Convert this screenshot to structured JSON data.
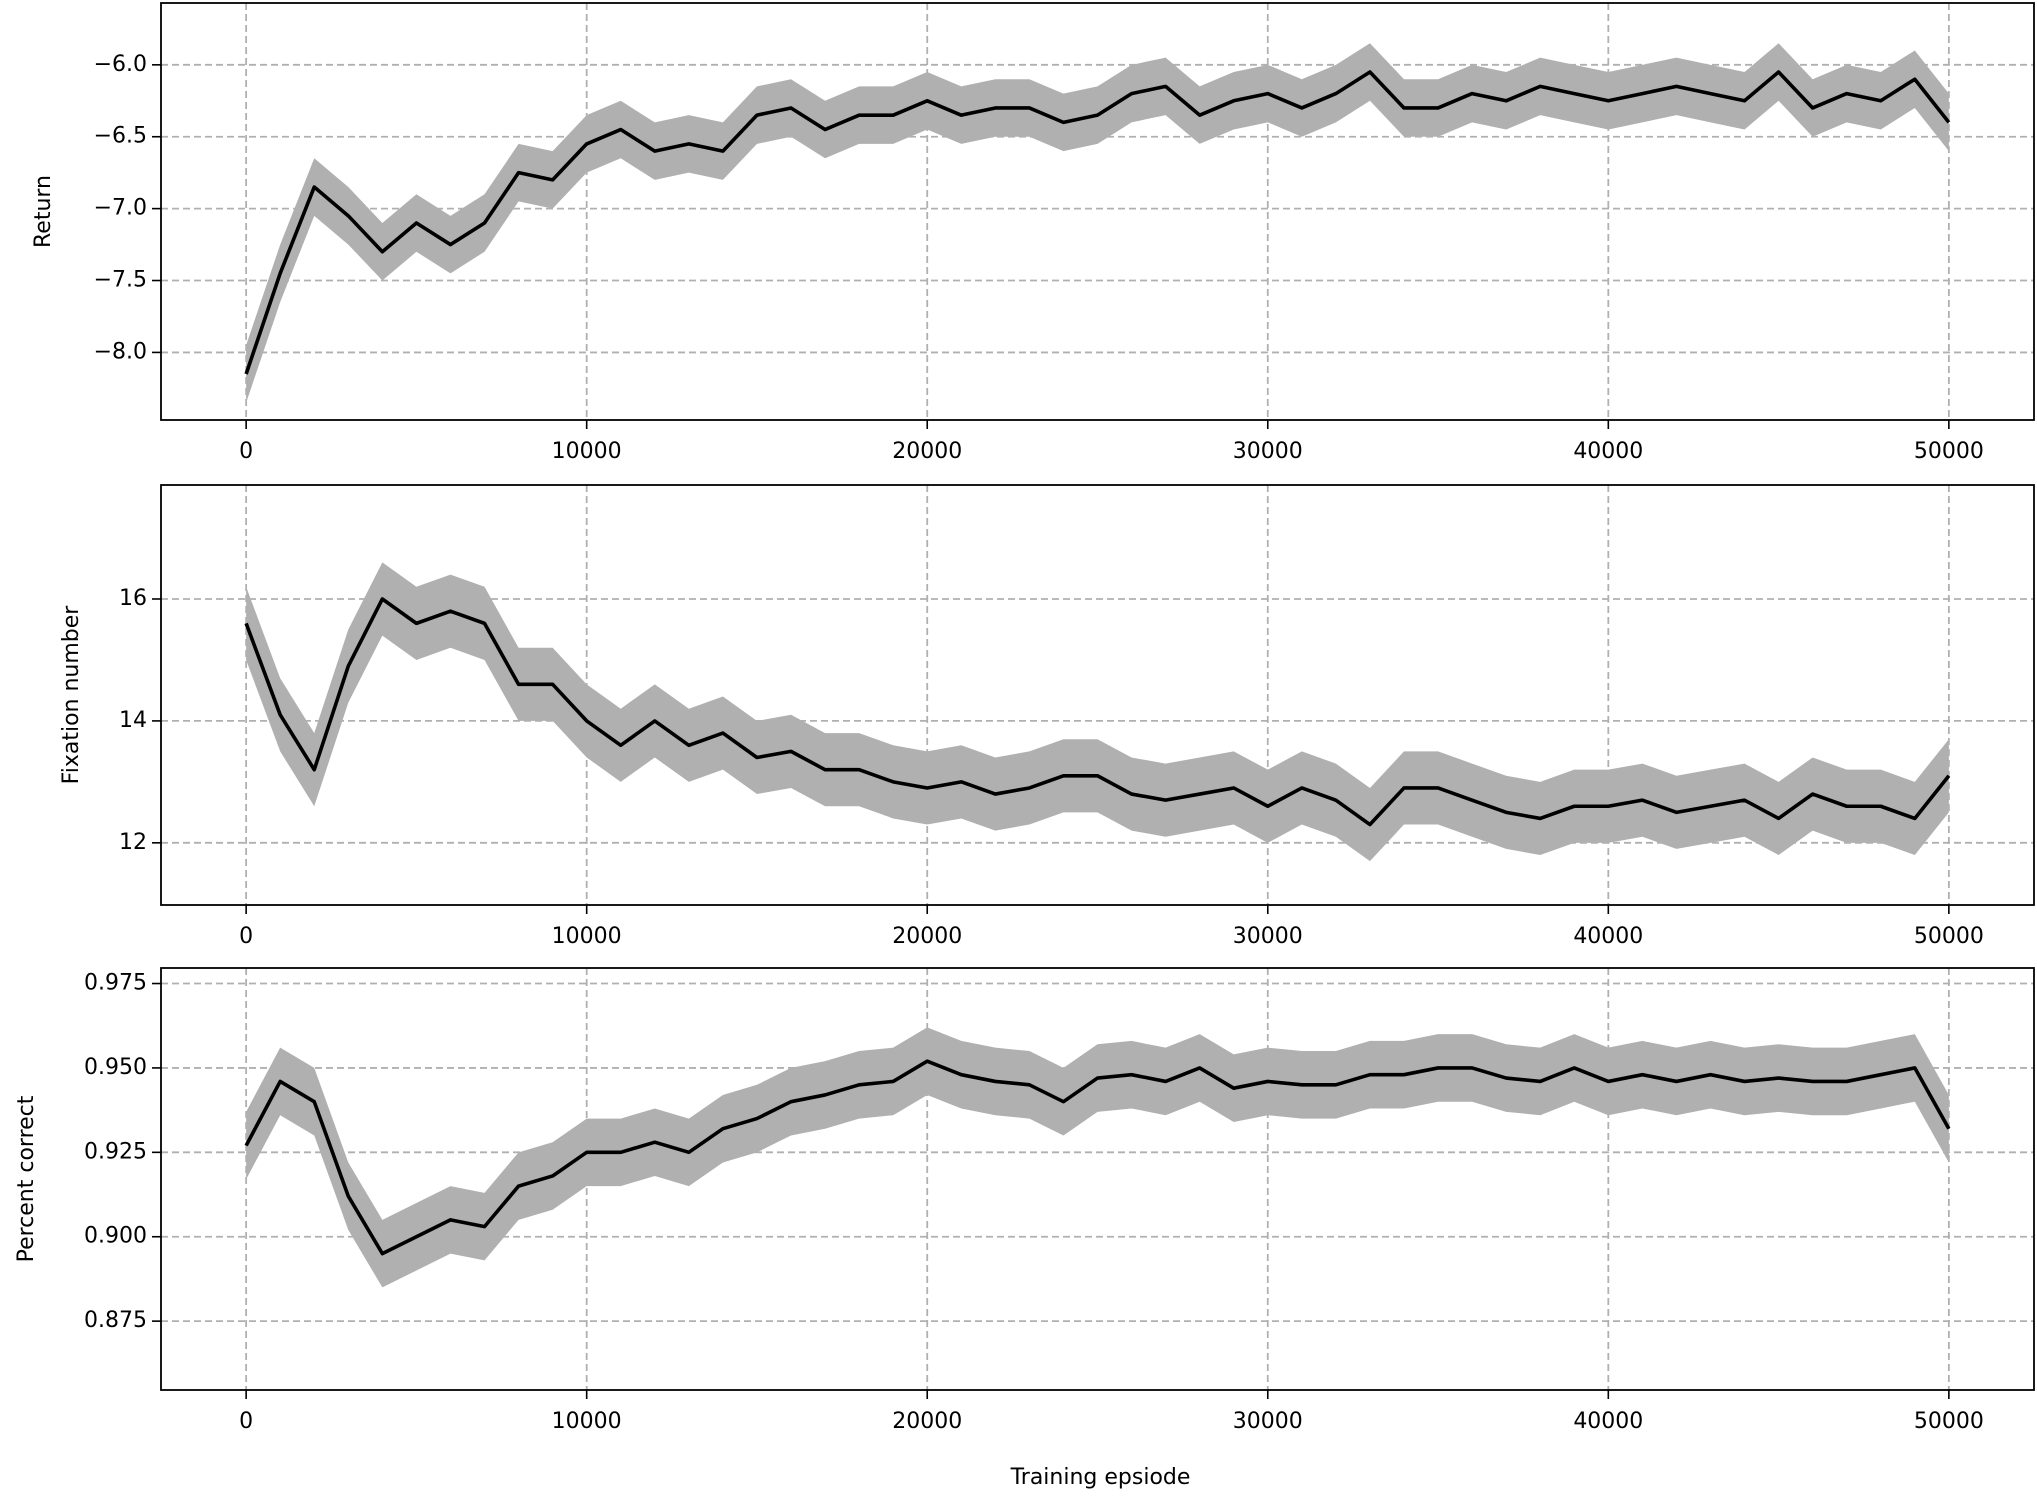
{
  "chart_data": [
    {
      "type": "line",
      "ylabel": "Return",
      "x": [
        0,
        1000,
        2000,
        3000,
        4000,
        5000,
        6000,
        7000,
        8000,
        9000,
        10000,
        11000,
        12000,
        13000,
        14000,
        15000,
        16000,
        17000,
        18000,
        19000,
        20000,
        21000,
        22000,
        23000,
        24000,
        25000,
        26000,
        27000,
        28000,
        29000,
        30000,
        31000,
        32000,
        33000,
        34000,
        35000,
        36000,
        37000,
        38000,
        39000,
        40000,
        41000,
        42000,
        43000,
        44000,
        45000,
        46000,
        47000,
        48000,
        49000,
        50000
      ],
      "series": [
        {
          "color": "#000000",
          "band_color": "#b0b0b0",
          "values": [
            -8.15,
            -7.45,
            -6.85,
            -7.05,
            -7.3,
            -7.1,
            -7.25,
            -7.1,
            -6.75,
            -6.8,
            -6.55,
            -6.45,
            -6.6,
            -6.55,
            -6.6,
            -6.35,
            -6.3,
            -6.45,
            -6.35,
            -6.35,
            -6.25,
            -6.35,
            -6.3,
            -6.3,
            -6.4,
            -6.35,
            -6.2,
            -6.15,
            -6.35,
            -6.25,
            -6.2,
            -6.3,
            -6.2,
            -6.05,
            -6.3,
            -6.3,
            -6.2,
            -6.25,
            -6.15,
            -6.2,
            -6.25,
            -6.2,
            -6.15,
            -6.2,
            -6.25,
            -6.05,
            -6.3,
            -6.2,
            -6.25,
            -6.1,
            -6.4
          ],
          "lower": [
            -8.35,
            -7.65,
            -7.05,
            -7.25,
            -7.5,
            -7.3,
            -7.45,
            -7.3,
            -6.95,
            -7.0,
            -6.75,
            -6.65,
            -6.8,
            -6.75,
            -6.8,
            -6.55,
            -6.5,
            -6.65,
            -6.55,
            -6.55,
            -6.45,
            -6.55,
            -6.5,
            -6.5,
            -6.6,
            -6.55,
            -6.4,
            -6.35,
            -6.55,
            -6.45,
            -6.4,
            -6.5,
            -6.4,
            -6.25,
            -6.5,
            -6.5,
            -6.4,
            -6.45,
            -6.35,
            -6.4,
            -6.45,
            -6.4,
            -6.35,
            -6.4,
            -6.45,
            -6.25,
            -6.5,
            -6.4,
            -6.45,
            -6.3,
            -6.6
          ],
          "upper": [
            -7.95,
            -7.25,
            -6.65,
            -6.85,
            -7.1,
            -6.9,
            -7.05,
            -6.9,
            -6.55,
            -6.6,
            -6.35,
            -6.25,
            -6.4,
            -6.35,
            -6.4,
            -6.15,
            -6.1,
            -6.25,
            -6.15,
            -6.15,
            -6.05,
            -6.15,
            -6.1,
            -6.1,
            -6.2,
            -6.15,
            -6.0,
            -5.95,
            -6.15,
            -6.05,
            -6.0,
            -6.1,
            -6.0,
            -5.85,
            -6.1,
            -6.1,
            -6.0,
            -6.05,
            -5.95,
            -6.0,
            -6.05,
            -6.0,
            -5.95,
            -6.0,
            -6.05,
            -5.85,
            -6.1,
            -6.0,
            -6.05,
            -5.9,
            -6.2
          ]
        }
      ],
      "xlim": [
        -2500,
        52500
      ],
      "ylim": [
        -8.47,
        -5.57
      ],
      "xticks": [
        0,
        10000,
        20000,
        30000,
        40000,
        50000
      ],
      "yticks": [
        {
          "value": -8,
          "label": "−8.0"
        },
        {
          "value": -7.5,
          "label": "−7.5"
        },
        {
          "value": -7,
          "label": "−7.0"
        },
        {
          "value": -6.5,
          "label": "−6.5"
        },
        {
          "value": -6,
          "label": "−6.0"
        }
      ],
      "grid": true
    },
    {
      "type": "line",
      "ylabel": "Fixation number",
      "x": [
        0,
        1000,
        2000,
        3000,
        4000,
        5000,
        6000,
        7000,
        8000,
        9000,
        10000,
        11000,
        12000,
        13000,
        14000,
        15000,
        16000,
        17000,
        18000,
        19000,
        20000,
        21000,
        22000,
        23000,
        24000,
        25000,
        26000,
        27000,
        28000,
        29000,
        30000,
        31000,
        32000,
        33000,
        34000,
        35000,
        36000,
        37000,
        38000,
        39000,
        40000,
        41000,
        42000,
        43000,
        44000,
        45000,
        46000,
        47000,
        48000,
        49000,
        50000
      ],
      "series": [
        {
          "color": "#000000",
          "band_color": "#b0b0b0",
          "values": [
            15.6,
            14.1,
            13.2,
            14.9,
            16.0,
            15.6,
            15.8,
            15.6,
            14.6,
            14.6,
            14.0,
            13.6,
            14.0,
            13.6,
            13.8,
            13.4,
            13.5,
            13.2,
            13.2,
            13.0,
            12.9,
            13.0,
            12.8,
            12.9,
            13.1,
            13.1,
            12.8,
            12.7,
            12.8,
            12.9,
            12.6,
            12.9,
            12.7,
            12.3,
            12.9,
            12.9,
            12.7,
            12.5,
            12.4,
            12.6,
            12.6,
            12.7,
            12.5,
            12.6,
            12.7,
            12.4,
            12.8,
            12.6,
            12.6,
            12.4,
            13.1
          ],
          "lower": [
            15.0,
            13.5,
            12.6,
            14.3,
            15.4,
            15.0,
            15.2,
            15.0,
            14.0,
            14.0,
            13.4,
            13.0,
            13.4,
            13.0,
            13.2,
            12.8,
            12.9,
            12.6,
            12.6,
            12.4,
            12.3,
            12.4,
            12.2,
            12.3,
            12.5,
            12.5,
            12.2,
            12.1,
            12.2,
            12.3,
            12.0,
            12.3,
            12.1,
            11.7,
            12.3,
            12.3,
            12.1,
            11.9,
            11.8,
            12.0,
            12.0,
            12.1,
            11.9,
            12.0,
            12.1,
            11.8,
            12.2,
            12.0,
            12.0,
            11.8,
            12.5
          ],
          "upper": [
            16.2,
            14.7,
            13.8,
            15.5,
            16.6,
            16.2,
            16.4,
            16.2,
            15.2,
            15.2,
            14.6,
            14.2,
            14.6,
            14.2,
            14.4,
            14.0,
            14.1,
            13.8,
            13.8,
            13.6,
            13.5,
            13.6,
            13.4,
            13.5,
            13.7,
            13.7,
            13.4,
            13.3,
            13.4,
            13.5,
            13.2,
            13.5,
            13.3,
            12.9,
            13.5,
            13.5,
            13.3,
            13.1,
            13.0,
            13.2,
            13.2,
            13.3,
            13.1,
            13.2,
            13.3,
            13.0,
            13.4,
            13.2,
            13.2,
            13.0,
            13.7
          ]
        }
      ],
      "xlim": [
        -2500,
        52500
      ],
      "ylim": [
        10.98,
        17.87
      ],
      "xticks": [
        0,
        10000,
        20000,
        30000,
        40000,
        50000
      ],
      "yticks": [
        12,
        14,
        16
      ],
      "grid": true
    },
    {
      "type": "line",
      "ylabel": "Percent correct",
      "xlabel": "Training epsiode",
      "x": [
        0,
        1000,
        2000,
        3000,
        4000,
        5000,
        6000,
        7000,
        8000,
        9000,
        10000,
        11000,
        12000,
        13000,
        14000,
        15000,
        16000,
        17000,
        18000,
        19000,
        20000,
        21000,
        22000,
        23000,
        24000,
        25000,
        26000,
        27000,
        28000,
        29000,
        30000,
        31000,
        32000,
        33000,
        34000,
        35000,
        36000,
        37000,
        38000,
        39000,
        40000,
        41000,
        42000,
        43000,
        44000,
        45000,
        46000,
        47000,
        48000,
        49000,
        50000
      ],
      "series": [
        {
          "color": "#000000",
          "band_color": "#b0b0b0",
          "values": [
            0.927,
            0.946,
            0.94,
            0.912,
            0.895,
            0.9,
            0.905,
            0.903,
            0.915,
            0.918,
            0.925,
            0.925,
            0.928,
            0.925,
            0.932,
            0.935,
            0.94,
            0.942,
            0.945,
            0.946,
            0.952,
            0.948,
            0.946,
            0.945,
            0.94,
            0.947,
            0.948,
            0.946,
            0.95,
            0.944,
            0.946,
            0.945,
            0.945,
            0.948,
            0.948,
            0.95,
            0.95,
            0.947,
            0.946,
            0.95,
            0.946,
            0.948,
            0.946,
            0.948,
            0.946,
            0.947,
            0.946,
            0.946,
            0.948,
            0.95,
            0.932
          ],
          "lower": [
            0.917,
            0.936,
            0.93,
            0.902,
            0.885,
            0.89,
            0.895,
            0.893,
            0.905,
            0.908,
            0.915,
            0.915,
            0.918,
            0.915,
            0.922,
            0.925,
            0.93,
            0.932,
            0.935,
            0.936,
            0.942,
            0.938,
            0.936,
            0.935,
            0.93,
            0.937,
            0.938,
            0.936,
            0.94,
            0.934,
            0.936,
            0.935,
            0.935,
            0.938,
            0.938,
            0.94,
            0.94,
            0.937,
            0.936,
            0.94,
            0.936,
            0.938,
            0.936,
            0.938,
            0.936,
            0.937,
            0.936,
            0.936,
            0.938,
            0.94,
            0.922
          ],
          "upper": [
            0.937,
            0.956,
            0.95,
            0.922,
            0.905,
            0.91,
            0.915,
            0.913,
            0.925,
            0.928,
            0.935,
            0.935,
            0.938,
            0.935,
            0.942,
            0.945,
            0.95,
            0.952,
            0.955,
            0.956,
            0.962,
            0.958,
            0.956,
            0.955,
            0.95,
            0.957,
            0.958,
            0.956,
            0.96,
            0.954,
            0.956,
            0.955,
            0.955,
            0.958,
            0.958,
            0.96,
            0.96,
            0.957,
            0.956,
            0.96,
            0.956,
            0.958,
            0.956,
            0.958,
            0.956,
            0.957,
            0.956,
            0.956,
            0.958,
            0.96,
            0.942
          ]
        }
      ],
      "xlim": [
        -2500,
        52500
      ],
      "ylim": [
        0.8546,
        0.9796
      ],
      "xticks": [
        0,
        10000,
        20000,
        30000,
        40000,
        50000
      ],
      "yticks": [
        0.875,
        {
          "value": 0.9,
          "label": "0.900"
        },
        0.925,
        {
          "value": 0.95,
          "label": "0.950"
        },
        0.975
      ],
      "grid": true
    }
  ]
}
